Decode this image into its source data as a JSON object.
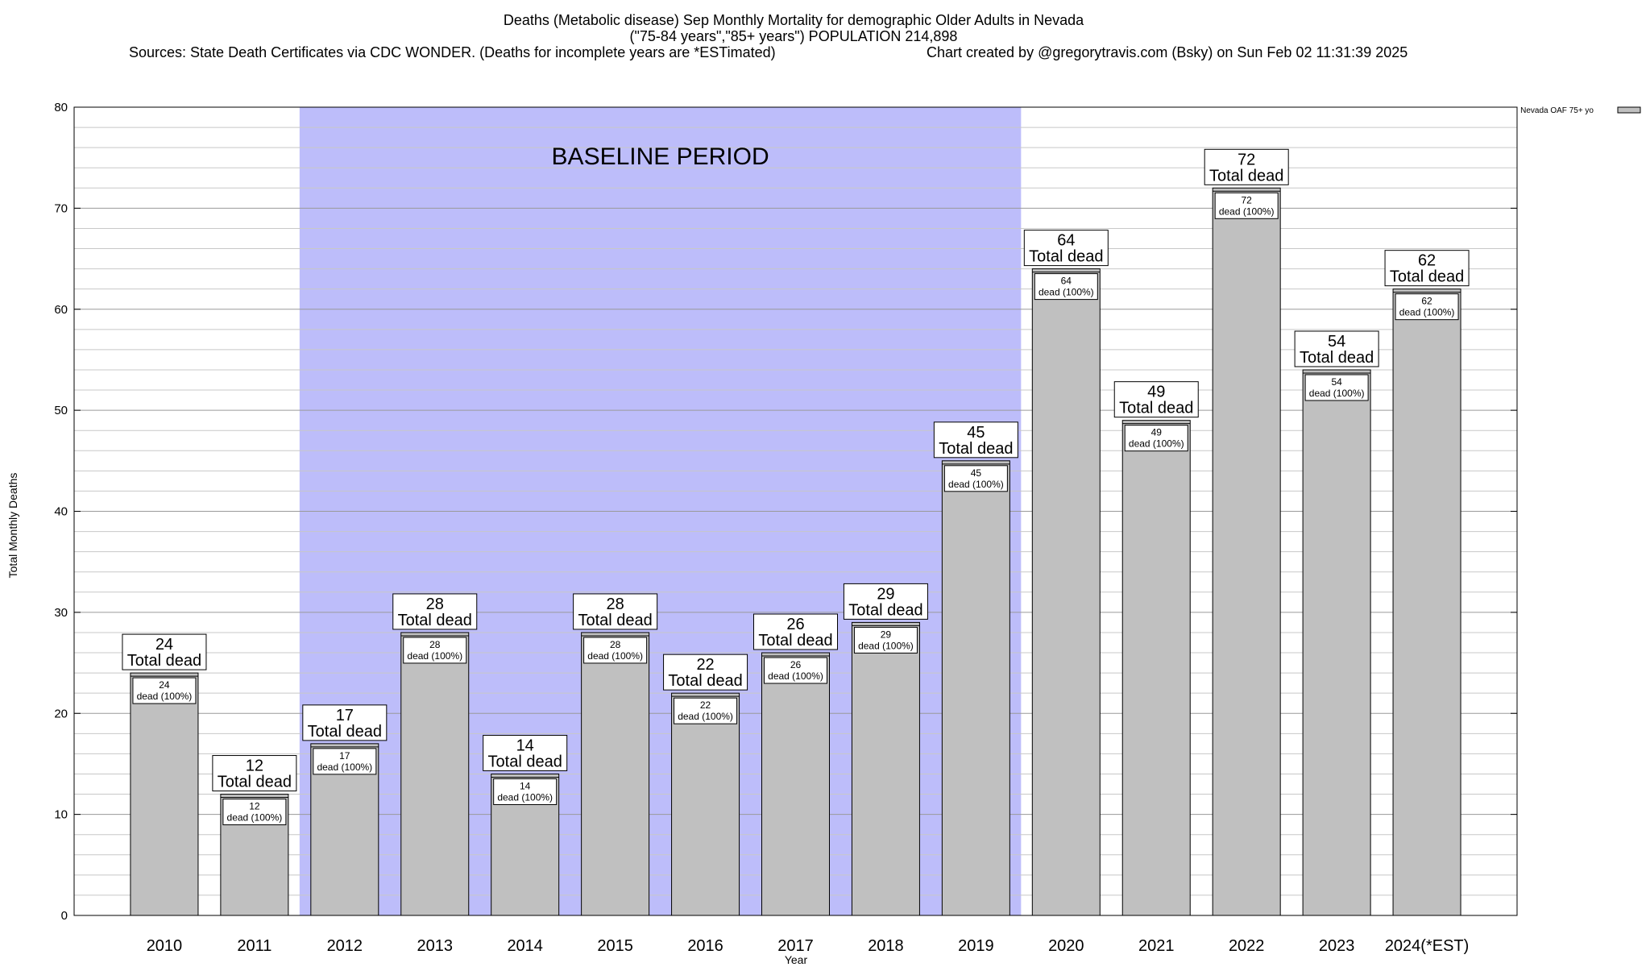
{
  "header": {
    "title_line1": "Deaths (Metabolic disease) Sep Monthly Mortality for demographic Older Adults in Nevada",
    "title_line2": "(\"75-84 years\",\"85+ years\") POPULATION 214,898",
    "sources": "Sources: State Death Certificates via CDC WONDER. (Deaths for incomplete years are *ESTimated)",
    "credit": "Chart created by @gregorytravis.com (Bsky) on Sun Feb 02 11:31:39 2025"
  },
  "chart_data": {
    "type": "bar",
    "categories": [
      "2010",
      "2011",
      "2012",
      "2013",
      "2014",
      "2015",
      "2016",
      "2017",
      "2018",
      "2019",
      "2020",
      "2021",
      "2022",
      "2023",
      "2024(*EST)"
    ],
    "series": [
      {
        "name": "Nevada OAF 75+ yo",
        "values": [
          24,
          12,
          17,
          28,
          14,
          28,
          22,
          26,
          29,
          45,
          64,
          49,
          72,
          54,
          62
        ],
        "color": "#c0c0c0"
      }
    ],
    "xlabel": "Year",
    "ylabel": "Total Monthly Deaths",
    "ylim": [
      0,
      80
    ],
    "yticks": [
      0,
      10,
      20,
      30,
      40,
      50,
      60,
      70,
      80
    ],
    "grid": true,
    "legend_position": "top-right",
    "baseline_period": {
      "label": "BASELINE PERIOD",
      "from": "2012",
      "to": "2019",
      "color": "#bdbdfa"
    },
    "outer_label_suffix": "Total dead",
    "inner_label_suffix": "dead (100%)"
  }
}
